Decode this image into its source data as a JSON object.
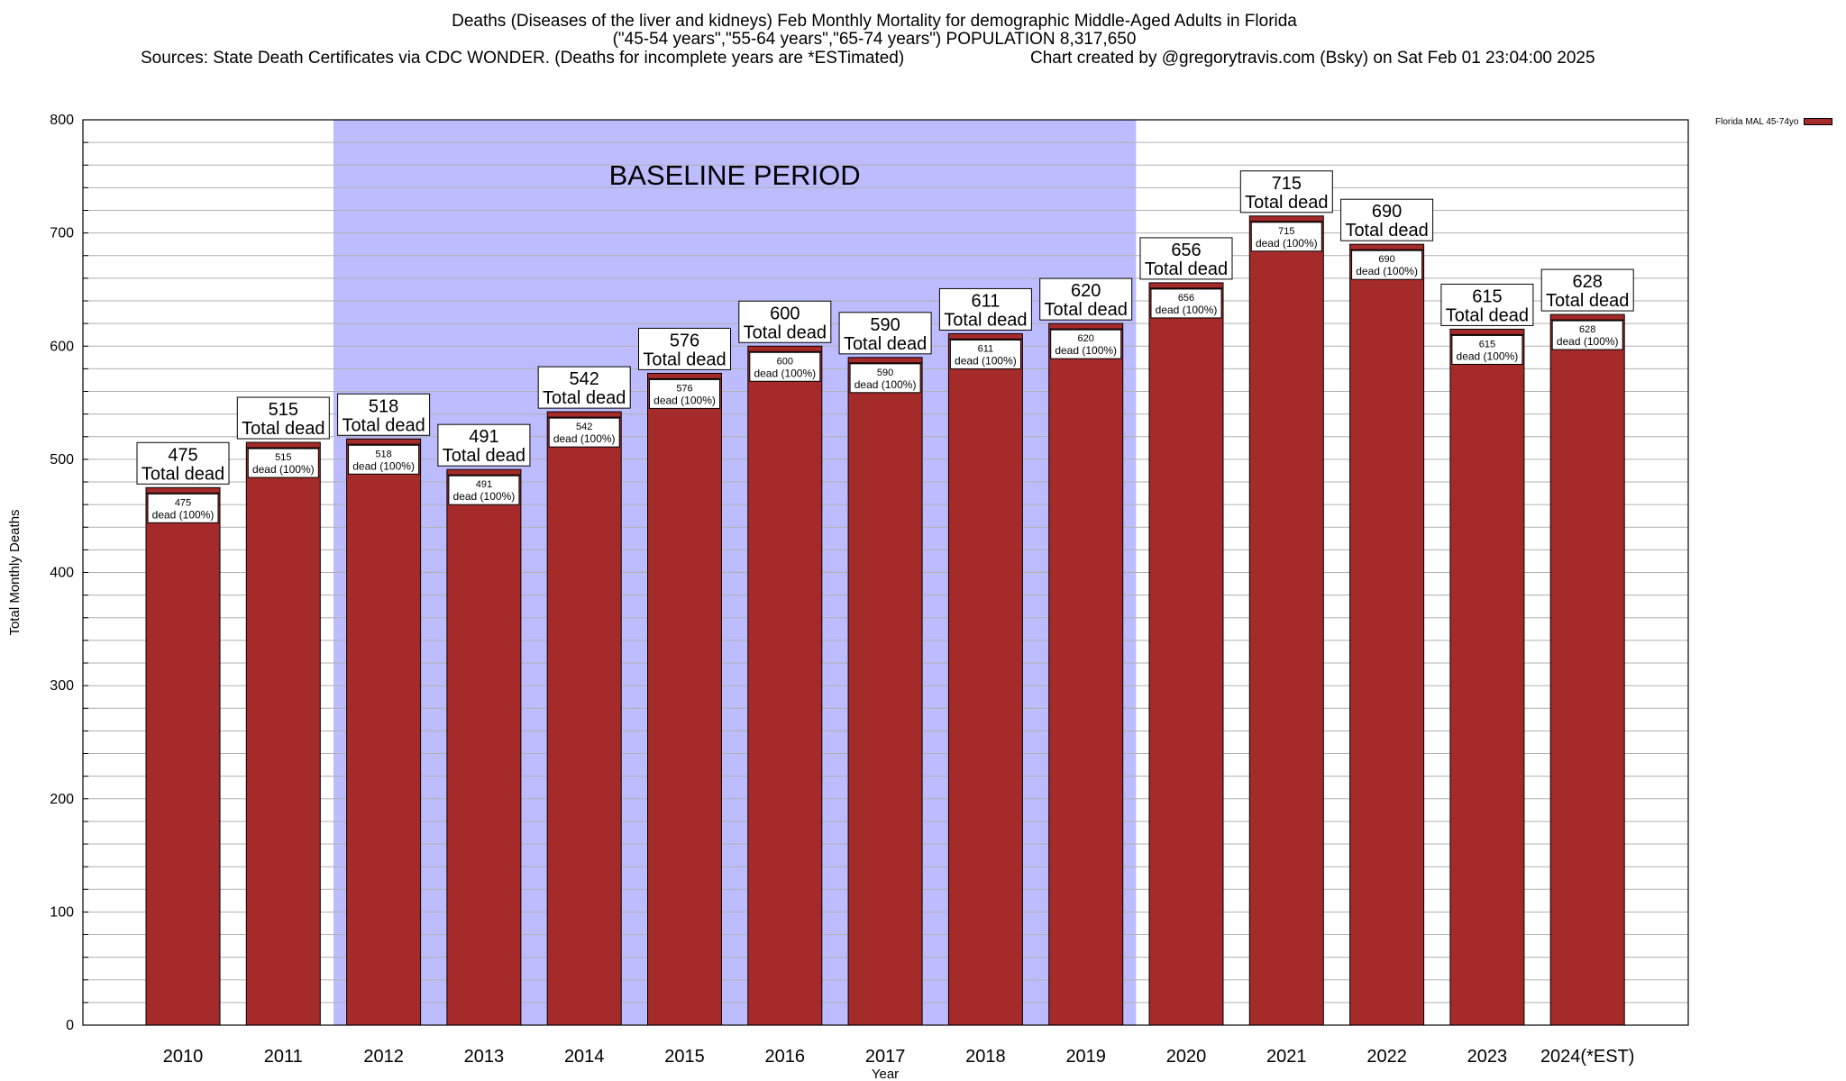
{
  "title": {
    "line1": "Deaths (Diseases of the liver and kidneys) Feb Monthly Mortality for demographic Middle-Aged Adults in Florida",
    "line2": "(\"45-54 years\",\"55-64 years\",\"65-74 years\") POPULATION 8,317,650",
    "sources": "Sources: State Death Certificates via CDC WONDER. (Deaths for incomplete years are *ESTimated)",
    "created": "Chart created by @gregorytravis.com (Bsky) on Sat Feb 01 23:04:00 2025"
  },
  "legend": {
    "label": "Florida MAL 45-74yo"
  },
  "colors": {
    "bar": "#a52a2a",
    "baseline": "#bcbcff",
    "grid": "#b0b0b0"
  },
  "chart_data": {
    "type": "bar",
    "categories": [
      "2010",
      "2011",
      "2012",
      "2013",
      "2014",
      "2015",
      "2016",
      "2017",
      "2018",
      "2019",
      "2020",
      "2021",
      "2022",
      "2023",
      "2024(*EST)"
    ],
    "series": [
      {
        "name": "Florida MAL 45-74yo",
        "values": [
          475,
          515,
          518,
          491,
          542,
          576,
          600,
          590,
          611,
          620,
          656,
          715,
          690,
          615,
          628
        ]
      }
    ],
    "xlabel": "Year",
    "ylabel": "Total Monthly Deaths",
    "ylim": [
      0,
      800
    ],
    "yticks": [
      0,
      100,
      200,
      300,
      400,
      500,
      600,
      700,
      800
    ],
    "grid": true,
    "legend_position": "top-right",
    "shaded_region": {
      "from": "2012",
      "to": "2019",
      "label": "BASELINE PERIOD"
    },
    "annotation_label": "Total dead",
    "inner_label": "dead (100%)"
  }
}
